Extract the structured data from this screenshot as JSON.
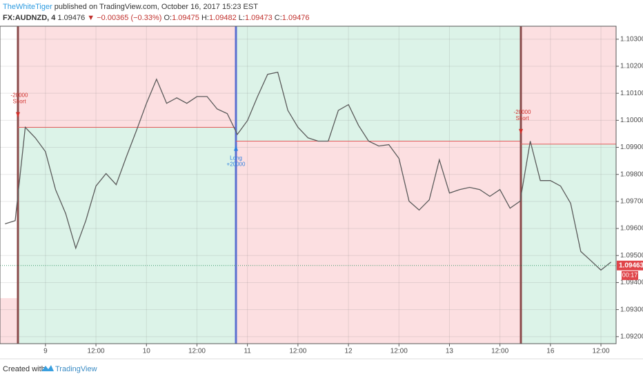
{
  "header": {
    "author": "TheWhiteTiger",
    "published": "published on TradingView.com, October 16, 2017 15:23 EST"
  },
  "chart_data": {
    "type": "line",
    "symbol": "FX:AUDNZD, 4",
    "last": "1.09476",
    "change": "▼ −0.00365 (−0.33%)",
    "quote": [
      {
        "label": "O:",
        "value": "1.09475"
      },
      {
        "label": "H:",
        "value": "1.09482"
      },
      {
        "label": "L:",
        "value": "1.09473"
      },
      {
        "label": "C:",
        "value": "1.09476"
      }
    ],
    "categories": [
      null,
      null,
      null,
      null,
      "9",
      null,
      null,
      null,
      null,
      "12:00",
      null,
      null,
      null,
      null,
      "10",
      null,
      null,
      null,
      null,
      "12:00",
      null,
      null,
      null,
      null,
      "11",
      null,
      null,
      null,
      null,
      "12:00",
      null,
      null,
      null,
      null,
      "12",
      null,
      null,
      null,
      null,
      "12:00",
      null,
      null,
      null,
      null,
      "13",
      null,
      null,
      null,
      null,
      "12:00",
      null,
      null,
      null,
      null,
      "16",
      null,
      null,
      null,
      null,
      "12:00",
      null
    ],
    "values": [
      1.09617,
      1.09629,
      1.09974,
      1.09935,
      1.09884,
      1.09744,
      1.09655,
      1.09527,
      1.09629,
      1.09757,
      1.09803,
      1.09762,
      1.09864,
      1.09961,
      1.10063,
      1.10152,
      1.10063,
      1.10083,
      1.10063,
      1.10088,
      1.10088,
      1.10042,
      1.10025,
      1.09948,
      1.09999,
      1.10088,
      1.1017,
      1.10178,
      1.10037,
      1.09974,
      1.09935,
      1.09923,
      1.09923,
      1.10037,
      1.10058,
      1.09981,
      1.09923,
      1.09905,
      1.0991,
      1.09859,
      1.09701,
      1.09668,
      1.09706,
      1.09854,
      1.09731,
      1.09744,
      1.09752,
      1.09744,
      1.09719,
      1.09744,
      1.09675,
      1.09701,
      1.09923,
      1.09777,
      1.09777,
      1.09757,
      1.09693,
      1.09515,
      1.09481,
      1.09446,
      1.09476
    ],
    "color": "#5a5a5a",
    "ylim": [
      1.09174,
      1.10348
    ],
    "yticks": [
      {
        "value": 1.092,
        "label": "1.09200"
      },
      {
        "value": 1.093,
        "label": "1.09300"
      },
      {
        "value": 1.094,
        "label": "1.09400"
      },
      {
        "value": 1.095,
        "label": "1.09500"
      },
      {
        "value": 1.096,
        "label": "1.09600"
      },
      {
        "value": 1.097,
        "label": "1.09700"
      },
      {
        "value": 1.098,
        "label": "1.09800"
      },
      {
        "value": 1.099,
        "label": "1.09900"
      },
      {
        "value": 1.1,
        "label": "1.10000"
      },
      {
        "value": 1.101,
        "label": "1.10100"
      },
      {
        "value": 1.102,
        "label": "1.10200"
      },
      {
        "value": 1.103,
        "label": "1.10300"
      }
    ],
    "grid": true,
    "trades": [
      {
        "amount": "-20000",
        "side": "Short",
        "price": 1.09974
      },
      {
        "amount": "+20000",
        "side": "Long",
        "price": 1.09923
      },
      {
        "amount": "-20000",
        "side": "Short",
        "price": 1.09912
      }
    ],
    "last_price": 1.09463,
    "countdown": "00:17"
  },
  "footer": {
    "created": "Created with",
    "brand": "TradingView"
  }
}
